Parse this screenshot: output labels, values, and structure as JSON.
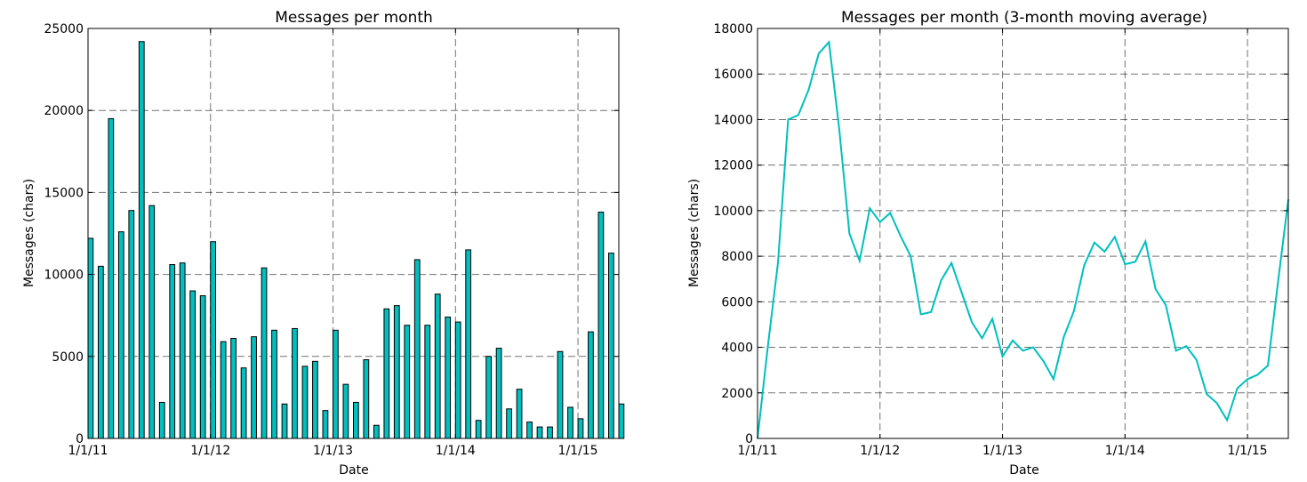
{
  "colors": {
    "bar_fill": "#00bfbf",
    "line": "#00bfbf"
  },
  "chart_data": [
    {
      "type": "bar",
      "title": "Messages per month",
      "xlabel": "Date",
      "ylabel": "Messages (chars)",
      "ylim": [
        0,
        25000
      ],
      "yticks": [
        0,
        5000,
        10000,
        15000,
        20000,
        25000
      ],
      "xticks": [
        {
          "index": 0,
          "label": "1/1/11"
        },
        {
          "index": 12,
          "label": "1/1/12"
        },
        {
          "index": 24,
          "label": "1/1/13"
        },
        {
          "index": 36,
          "label": "1/1/14"
        },
        {
          "index": 48,
          "label": "1/1/15"
        }
      ],
      "grid": true,
      "months": [
        "2011-01",
        "2011-02",
        "2011-03",
        "2011-04",
        "2011-05",
        "2011-06",
        "2011-07",
        "2011-08",
        "2011-09",
        "2011-10",
        "2011-11",
        "2011-12",
        "2012-01",
        "2012-02",
        "2012-03",
        "2012-04",
        "2012-05",
        "2012-06",
        "2012-07",
        "2012-08",
        "2012-09",
        "2012-10",
        "2012-11",
        "2012-12",
        "2013-01",
        "2013-02",
        "2013-03",
        "2013-04",
        "2013-05",
        "2013-06",
        "2013-07",
        "2013-08",
        "2013-09",
        "2013-10",
        "2013-11",
        "2013-12",
        "2014-01",
        "2014-02",
        "2014-03",
        "2014-04",
        "2014-05",
        "2014-06",
        "2014-07",
        "2014-08",
        "2014-09",
        "2014-10",
        "2014-11",
        "2014-12",
        "2015-01",
        "2015-02",
        "2015-03",
        "2015-04",
        "2015-05"
      ],
      "values": [
        12200,
        10500,
        19500,
        12600,
        13900,
        24200,
        14200,
        2200,
        10600,
        10700,
        9000,
        8700,
        12000,
        5900,
        6100,
        4300,
        6200,
        10400,
        6600,
        2100,
        6700,
        4400,
        4700,
        1700,
        6600,
        3300,
        2200,
        4800,
        800,
        7900,
        8100,
        6900,
        10900,
        6900,
        8800,
        7400,
        7100,
        11500,
        1100,
        5000,
        5500,
        1800,
        3000,
        1000,
        700,
        700,
        5300,
        1900,
        1200,
        6500,
        13800,
        11300,
        2100
      ]
    },
    {
      "type": "line",
      "title": "Messages per month (3-month moving average)",
      "xlabel": "Date",
      "ylabel": "Messages (chars)",
      "ylim": [
        0,
        18000
      ],
      "yticks": [
        0,
        2000,
        4000,
        6000,
        8000,
        10000,
        12000,
        14000,
        16000,
        18000
      ],
      "xticks": [
        {
          "index": 0,
          "label": "1/1/11"
        },
        {
          "index": 12,
          "label": "1/1/12"
        },
        {
          "index": 24,
          "label": "1/1/13"
        },
        {
          "index": 36,
          "label": "1/1/14"
        },
        {
          "index": 48,
          "label": "1/1/15"
        }
      ],
      "grid": true,
      "months": [
        "2011-01",
        "2011-02",
        "2011-03",
        "2011-04",
        "2011-05",
        "2011-06",
        "2011-07",
        "2011-08",
        "2011-09",
        "2011-10",
        "2011-11",
        "2011-12",
        "2012-01",
        "2012-02",
        "2012-03",
        "2012-04",
        "2012-05",
        "2012-06",
        "2012-07",
        "2012-08",
        "2012-09",
        "2012-10",
        "2012-11",
        "2012-12",
        "2013-01",
        "2013-02",
        "2013-03",
        "2013-04",
        "2013-05",
        "2013-06",
        "2013-07",
        "2013-08",
        "2013-09",
        "2013-10",
        "2013-11",
        "2013-12",
        "2014-01",
        "2014-02",
        "2014-03",
        "2014-04",
        "2014-05",
        "2014-06",
        "2014-07",
        "2014-08",
        "2014-09",
        "2014-10",
        "2014-11",
        "2014-12",
        "2015-01",
        "2015-02",
        "2015-03",
        "2015-04",
        "2015-05"
      ],
      "values": [
        0,
        4000,
        7700,
        14000,
        14200,
        15300,
        16900,
        17400,
        13600,
        9000,
        7800,
        10100,
        9500,
        9900,
        8900,
        8000,
        5450,
        5550,
        6950,
        7700,
        6400,
        5100,
        4400,
        5250,
        3600,
        4300,
        3850,
        4000,
        3400,
        2600,
        4450,
        5600,
        7600,
        8600,
        8200,
        8850,
        7650,
        7750,
        8650,
        6550,
        5850,
        3850,
        4050,
        3450,
        1950,
        1550,
        800,
        2200,
        2600,
        2800,
        3200,
        6900,
        10500
      ]
    }
  ]
}
